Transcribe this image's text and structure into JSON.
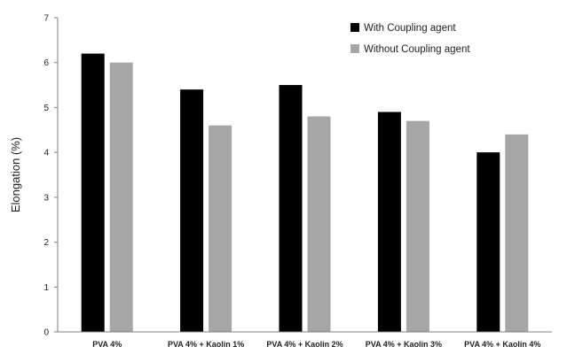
{
  "chart_data": {
    "type": "bar",
    "categories": [
      "PVA 4%",
      "PVA 4% + Kaolin 1%",
      "PVA 4% + Kaolin 2%",
      "PVA 4% + Kaolin 3%",
      "PVA 4% + Kaolin 4%"
    ],
    "series": [
      {
        "name": "With Coupling agent",
        "values": [
          6.2,
          5.4,
          5.5,
          4.9,
          4.0
        ],
        "color": "#000000"
      },
      {
        "name": "Without Coupling agent",
        "values": [
          6.0,
          4.6,
          4.8,
          4.7,
          4.4
        ],
        "color": "#a6a6a6"
      }
    ],
    "title": "",
    "xlabel": "",
    "ylabel": "Elongation (%)",
    "ylim": [
      0,
      7
    ],
    "yticks": [
      0,
      1,
      2,
      3,
      4,
      5,
      6,
      7
    ],
    "grid": false,
    "legend_position": "top-right"
  }
}
